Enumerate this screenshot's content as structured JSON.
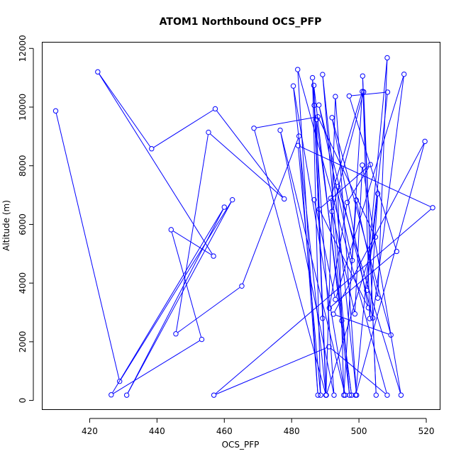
{
  "chart_data": {
    "type": "line",
    "title": "ATOM1 Northbound OCS_PFP",
    "xlabel": "OCS_PFP",
    "ylabel": "Altitude (m)",
    "xlim": [
      406,
      524
    ],
    "ylim": [
      -300,
      12200
    ],
    "x_ticks": [
      420,
      440,
      460,
      480,
      500,
      520
    ],
    "x_tick_labels": [
      "420",
      "440",
      "460",
      "480",
      "500",
      "520"
    ],
    "y_ticks": [
      0,
      2000,
      4000,
      6000,
      8000,
      10000,
      12000
    ],
    "y_tick_labels": [
      "0",
      "2000",
      "4000",
      "6000",
      "8000",
      "10000",
      "12000"
    ],
    "grid": false,
    "line_color": "#0000ff",
    "marker": "open-circle",
    "series": [
      {
        "points": [
          [
            409.9,
            9870
          ],
          [
            428.9,
            650
          ],
          [
            462.4,
            6840
          ],
          [
            431.0,
            180
          ],
          [
            460.0,
            6590
          ],
          [
            426.4,
            190
          ],
          [
            453.3,
            2080
          ],
          [
            444.2,
            5820
          ],
          [
            456.8,
            4920
          ],
          [
            422.4,
            11200
          ],
          [
            438.4,
            8580
          ],
          [
            457.3,
            9940
          ],
          [
            477.8,
            6870
          ],
          [
            455.3,
            9140
          ],
          [
            445.6,
            2270
          ],
          [
            465.2,
            3900
          ],
          [
            482.2,
            9010
          ],
          [
            487.8,
            180
          ],
          [
            481.8,
            11280
          ],
          [
            508.4,
            180
          ],
          [
            491.1,
            1830
          ],
          [
            456.9,
            180
          ],
          [
            521.9,
            6570
          ],
          [
            481.9,
            8690
          ],
          [
            488.6,
            180
          ],
          [
            486.2,
            11000
          ],
          [
            492.6,
            180
          ],
          [
            476.6,
            9210
          ],
          [
            495.9,
            180
          ],
          [
            480.5,
            10720
          ],
          [
            490.2,
            180
          ],
          [
            468.8,
            9280
          ],
          [
            487.8,
            9670
          ],
          [
            504.9,
            5570
          ],
          [
            490.3,
            180
          ],
          [
            486.7,
            10060
          ],
          [
            490.2,
            180
          ],
          [
            493.0,
            10360
          ],
          [
            499.3,
            180
          ],
          [
            489.2,
            11110
          ],
          [
            497.2,
            180
          ],
          [
            486.6,
            10740
          ],
          [
            489.2,
            2800
          ],
          [
            487.4,
            9580
          ],
          [
            497.8,
            180
          ],
          [
            494.9,
            2720
          ],
          [
            491.6,
            6890
          ],
          [
            501.0,
            10530
          ],
          [
            495.5,
            180
          ],
          [
            493.7,
            7290
          ],
          [
            512.5,
            180
          ],
          [
            501.0,
            8020
          ],
          [
            498.8,
            2950
          ],
          [
            492.0,
            6440
          ],
          [
            501.4,
            10520
          ],
          [
            505.1,
            180
          ],
          [
            501.1,
            11060
          ],
          [
            503.2,
            2790
          ],
          [
            505.6,
            7050
          ],
          [
            502.3,
            3750
          ],
          [
            508.5,
            10510
          ],
          [
            497.1,
            10380
          ],
          [
            511.2,
            5080
          ],
          [
            491.2,
            3150
          ],
          [
            496.5,
            6750
          ],
          [
            503.4,
            8040
          ],
          [
            488.2,
            6520
          ],
          [
            502.8,
            3160
          ],
          [
            492.0,
            9640
          ],
          [
            509.5,
            2230
          ],
          [
            492.4,
            2940
          ],
          [
            519.6,
            8830
          ],
          [
            499.0,
            180
          ],
          [
            508.4,
            11680
          ],
          [
            505.6,
            3490
          ],
          [
            499.2,
            6830
          ],
          [
            498.0,
            4770
          ],
          [
            488.1,
            10070
          ],
          [
            504.1,
            2810
          ],
          [
            513.4,
            11120
          ],
          [
            493.0,
            3440
          ],
          [
            486.7,
            6840
          ]
        ]
      }
    ]
  }
}
